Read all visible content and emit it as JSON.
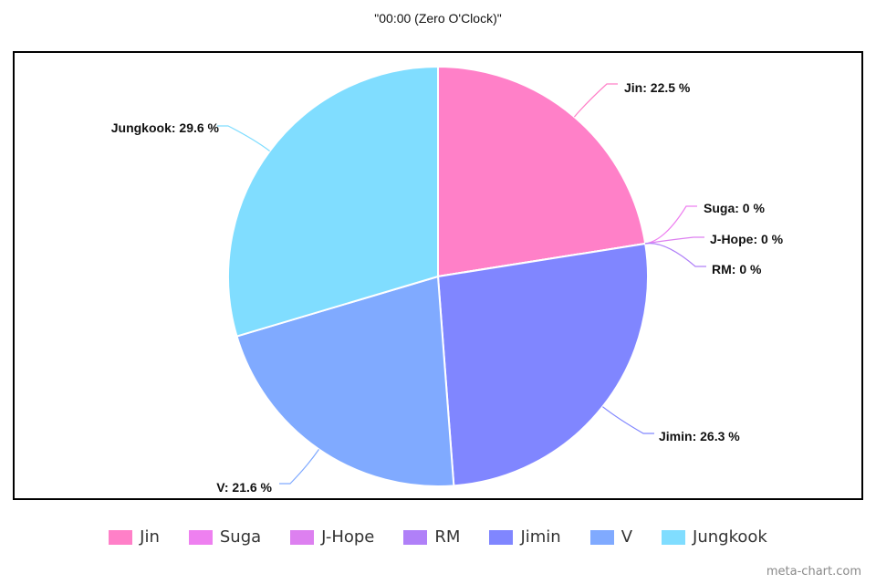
{
  "chart_data": {
    "type": "pie",
    "title": "\"00:00 (Zero O'Clock)\"",
    "slices": [
      {
        "name": "Jin",
        "value": 22.5,
        "label": "Jin: 22.5 %",
        "color": "#ff80c8"
      },
      {
        "name": "Suga",
        "value": 0,
        "label": "Suga: 0 %",
        "color": "#ee80f0"
      },
      {
        "name": "J-Hope",
        "value": 0,
        "label": "J-Hope: 0 %",
        "color": "#dd80f0"
      },
      {
        "name": "RM",
        "value": 0,
        "label": "RM: 0 %",
        "color": "#b080f8"
      },
      {
        "name": "Jimin",
        "value": 26.3,
        "label": "Jimin: 26.3 %",
        "color": "#8086ff"
      },
      {
        "name": "V",
        "value": 21.6,
        "label": "V: 21.6 %",
        "color": "#80aaff"
      },
      {
        "name": "Jungkook",
        "value": 29.6,
        "label": "Jungkook: 29.6 %",
        "color": "#80ddff"
      }
    ],
    "legend_position": "bottom"
  },
  "watermark": "meta-chart.com"
}
